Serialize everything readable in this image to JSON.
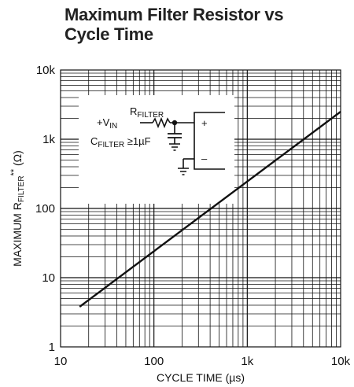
{
  "chart_data": {
    "type": "line",
    "title_line1": "Maximum Filter Resistor vs",
    "title_line2": "Cycle Time",
    "xlabel": "CYCLE TIME (µs)",
    "ylabel": {
      "pre": "MAXIMUM R",
      "sub": "FILTER",
      "sup": "**",
      "post": " (Ω)"
    },
    "x_scale": "log",
    "y_scale": "log",
    "xlim": [
      10,
      10000
    ],
    "ylim": [
      1,
      10000
    ],
    "x_ticks": [
      {
        "value": 10,
        "label": "10"
      },
      {
        "value": 100,
        "label": "100"
      },
      {
        "value": 1000,
        "label": "1k"
      },
      {
        "value": 10000,
        "label": "10k"
      }
    ],
    "y_ticks": [
      {
        "value": 1,
        "label": "1"
      },
      {
        "value": 10,
        "label": "10"
      },
      {
        "value": 100,
        "label": "100"
      },
      {
        "value": 1000,
        "label": "1k"
      },
      {
        "value": 10000,
        "label": "10k"
      }
    ],
    "grid": true,
    "series": [
      {
        "x": [
          16,
          10000
        ],
        "y": [
          3.8,
          2500
        ]
      }
    ],
    "inset_schematic": {
      "r_label": {
        "main": "R",
        "sub": "FILTER"
      },
      "vin_label": {
        "main": "+V",
        "sub": "IN"
      },
      "c_label": {
        "main": "C",
        "sub": "FILTER",
        "post": " ≥1µF"
      },
      "plus": "+",
      "minus": "–"
    }
  }
}
